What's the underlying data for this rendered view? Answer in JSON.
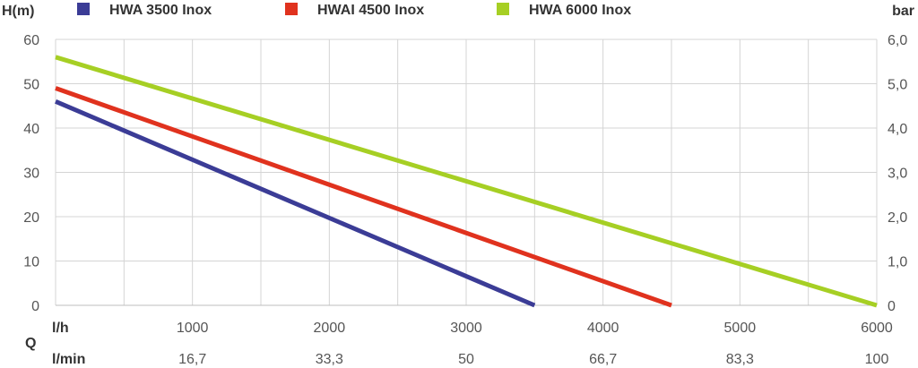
{
  "chart_data": {
    "type": "line",
    "left_axis_label": "H(m)",
    "right_axis_label": "bar",
    "x_row_label": "l/h",
    "x2_row_label": "l/min",
    "q_label": "Q",
    "xlim": [
      0,
      6000
    ],
    "ylim": [
      0,
      60
    ],
    "y2lim": [
      0,
      6
    ],
    "grid": true,
    "legend_position": "top",
    "x_ticks": [
      "1000",
      "2000",
      "3000",
      "4000",
      "5000",
      "6000"
    ],
    "x_tick_values": [
      1000,
      2000,
      3000,
      4000,
      5000,
      6000
    ],
    "x2_ticks": [
      "16,7",
      "33,3",
      "50",
      "66,7",
      "83,3",
      "100"
    ],
    "y_ticks": [
      "0",
      "10",
      "20",
      "30",
      "40",
      "50",
      "60"
    ],
    "y_tick_values": [
      0,
      10,
      20,
      30,
      40,
      50,
      60
    ],
    "y2_ticks": [
      "0",
      "1,0",
      "2,0",
      "3,0",
      "4,0",
      "5,0",
      "6,0"
    ],
    "series": [
      {
        "name": "HWA 3500 Inox",
        "color": "#3b3c96",
        "x": [
          0,
          3500
        ],
        "y": [
          46,
          0
        ]
      },
      {
        "name": "HWAI 4500 Inox",
        "color": "#e0321e",
        "x": [
          0,
          4500
        ],
        "y": [
          49,
          0
        ]
      },
      {
        "name": "HWA 6000 Inox",
        "color": "#a6cf24",
        "x": [
          0,
          6000
        ],
        "y": [
          56,
          0
        ]
      }
    ]
  }
}
